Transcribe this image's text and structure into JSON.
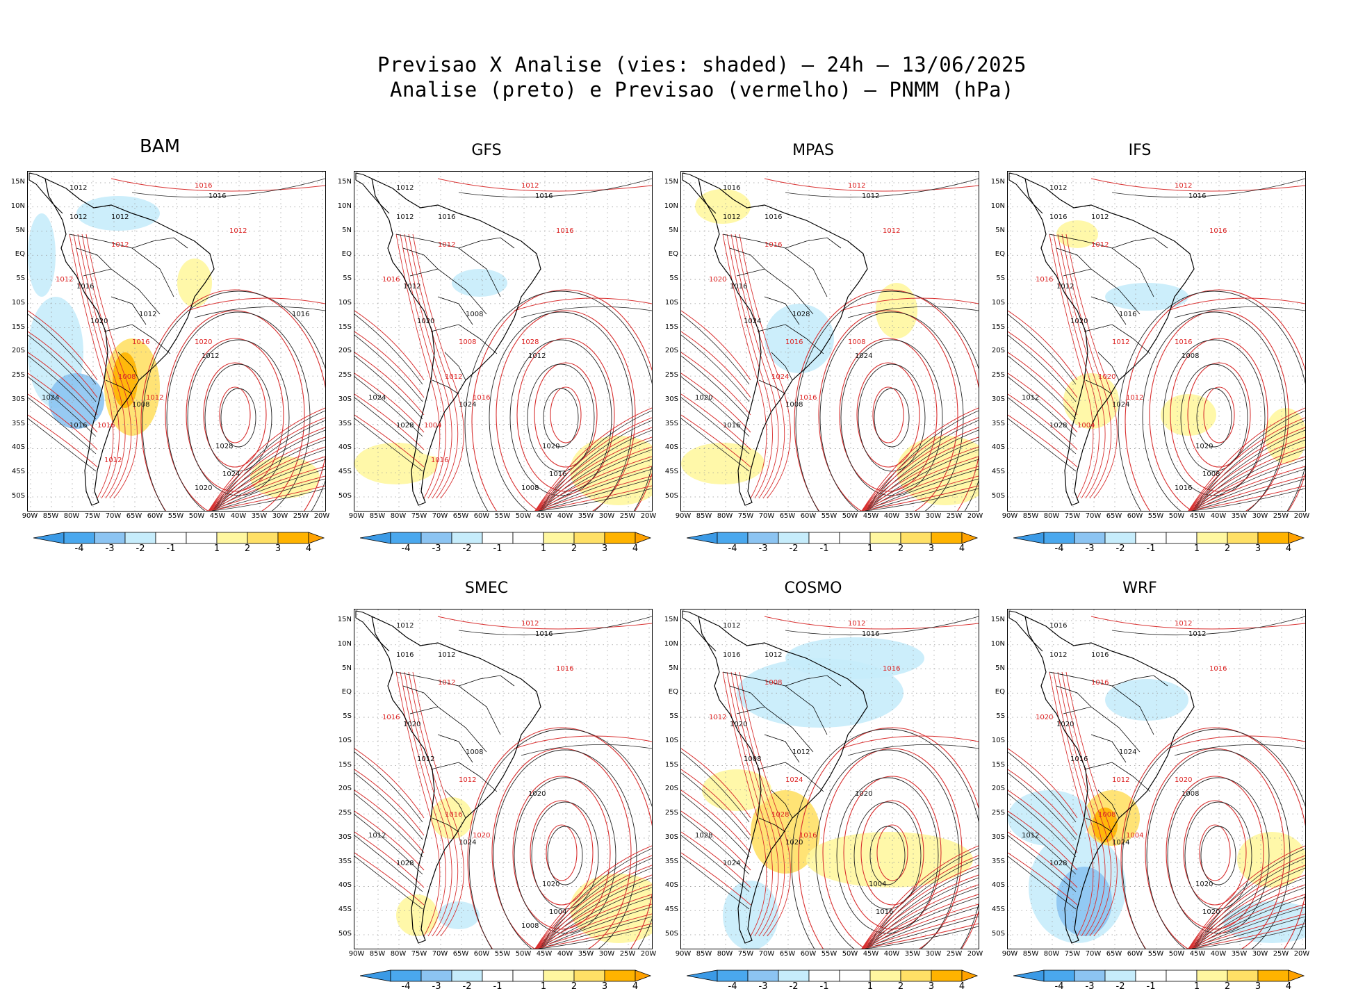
{
  "header": {
    "line1": "Previsao X Analise (vies: shaded) — 24h — 13/06/2025",
    "line2": "Analise (preto) e Previsao (vermelho) — PNMM (hPa)"
  },
  "colors": {
    "analysis_contour": "#222222",
    "forecast_contour": "#d83030",
    "bias_neg4": "#4aa8ee",
    "bias_neg3": "#8cc4f2",
    "bias_neg2": "#c6ecfb",
    "bias_neg1": "#ffffff",
    "bias_pos1": "#fff7a0",
    "bias_pos2": "#ffe066",
    "bias_pos3": "#ffb300"
  },
  "axes": {
    "lat_labels": [
      "15N",
      "10N",
      "5N",
      "EQ",
      "5S",
      "10S",
      "15S",
      "20S",
      "25S",
      "30S",
      "35S",
      "40S",
      "45S",
      "50S"
    ],
    "lon_labels": [
      "90W",
      "85W",
      "80W",
      "75W",
      "70W",
      "65W",
      "60W",
      "55W",
      "50W",
      "45W",
      "40W",
      "35W",
      "30W",
      "25W",
      "20W"
    ]
  },
  "colorbar": {
    "labels": [
      "-4",
      "-3",
      "-2",
      "-1",
      "1",
      "2",
      "3",
      "4"
    ]
  },
  "panels": [
    {
      "name": "BAM",
      "labels_black": [
        "1012",
        "1016",
        "1012",
        "1012",
        "1016",
        "1020",
        "1012",
        "1012",
        "1024",
        "1016",
        "1008",
        "1028",
        "1024",
        "1020",
        "1016"
      ],
      "labels_red": [
        "1016",
        "1012",
        "1012",
        "1012",
        "1016",
        "1008",
        "1012",
        "1020",
        "1016",
        "1012"
      ]
    },
    {
      "name": "GFS",
      "labels_black": [
        "1012",
        "1016",
        "1016",
        "1012",
        "1012",
        "1020",
        "1008",
        "1012",
        "1024",
        "1028",
        "1024",
        "1020",
        "1016",
        "1008"
      ],
      "labels_red": [
        "1012",
        "1016",
        "1012",
        "1016",
        "1008",
        "1012",
        "1016",
        "1028",
        "1004",
        "1016"
      ]
    },
    {
      "name": "MPAS",
      "labels_black": [
        "1016",
        "1012",
        "1016",
        "1012",
        "1016",
        "1024",
        "1028",
        "1024",
        "1020",
        "1016",
        "1008"
      ],
      "labels_red": [
        "1012",
        "1012",
        "1016",
        "1020",
        "1016",
        "1024",
        "1016",
        "1008"
      ]
    },
    {
      "name": "IFS",
      "labels_black": [
        "1012",
        "1016",
        "1012",
        "1016",
        "1012",
        "1020",
        "1016",
        "1008",
        "1012",
        "1028",
        "1024",
        "1020",
        "1008",
        "1016"
      ],
      "labels_red": [
        "1012",
        "1016",
        "1012",
        "1016",
        "1012",
        "1020",
        "1012",
        "1016",
        "1004"
      ]
    },
    {
      "name": "SMEC",
      "labels_black": [
        "1012",
        "1016",
        "1012",
        "1016",
        "1020",
        "1012",
        "1008",
        "1020",
        "1012",
        "1028",
        "1024",
        "1020",
        "1004",
        "1008"
      ],
      "labels_red": [
        "1012",
        "1016",
        "1012",
        "1016",
        "1012",
        "1016",
        "1020"
      ]
    },
    {
      "name": "COSMO",
      "labels_black": [
        "1012",
        "1016",
        "1012",
        "1016",
        "1020",
        "1008",
        "1012",
        "1020",
        "1028",
        "1024",
        "1020",
        "1004",
        "1016"
      ],
      "labels_red": [
        "1012",
        "1016",
        "1008",
        "1012",
        "1024",
        "1028",
        "1016"
      ]
    },
    {
      "name": "WRF",
      "labels_black": [
        "1016",
        "1012",
        "1016",
        "1012",
        "1020",
        "1016",
        "1024",
        "1008",
        "1012",
        "1028",
        "1024",
        "1020",
        "1020"
      ],
      "labels_red": [
        "1012",
        "1016",
        "1016",
        "1020",
        "1012",
        "1008",
        "1004",
        "1020"
      ]
    }
  ]
}
